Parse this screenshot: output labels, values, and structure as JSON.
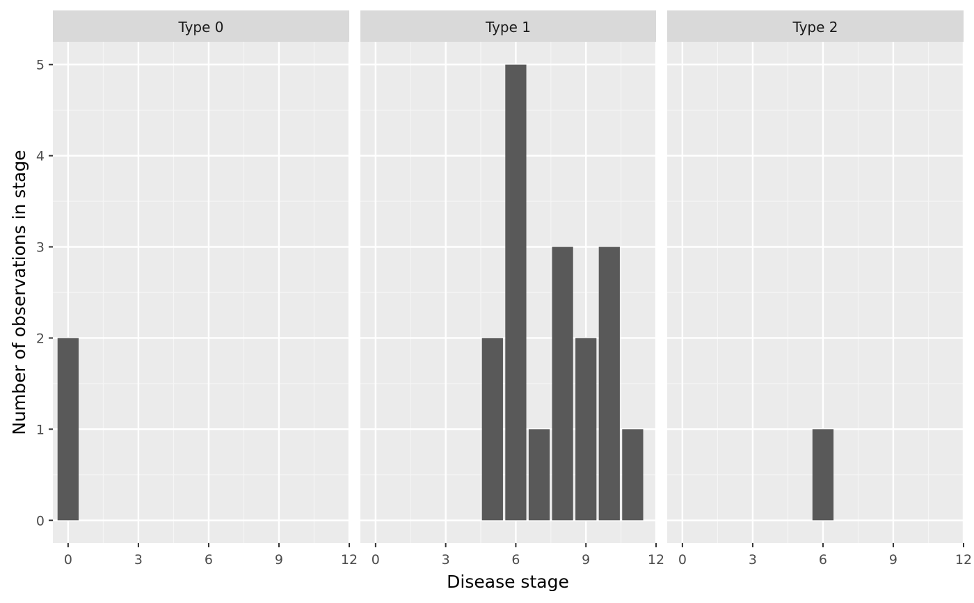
{
  "chart_data": {
    "type": "bar",
    "xlabel": "Disease stage",
    "ylabel": "Number of observations in stage",
    "xlim": [
      -0.65,
      12
    ],
    "ylim": [
      -0.25,
      5.25
    ],
    "x_ticks": [
      0,
      3,
      6,
      9,
      12
    ],
    "y_ticks": [
      0,
      1,
      2,
      3,
      4,
      5
    ],
    "grid": true,
    "facets": [
      {
        "label": "Type 0",
        "bars": [
          {
            "x": 0,
            "y": 2
          }
        ]
      },
      {
        "label": "Type 1",
        "bars": [
          {
            "x": 5,
            "y": 2
          },
          {
            "x": 6,
            "y": 5
          },
          {
            "x": 7,
            "y": 1
          },
          {
            "x": 8,
            "y": 3
          },
          {
            "x": 9,
            "y": 2
          },
          {
            "x": 10,
            "y": 3
          },
          {
            "x": 11,
            "y": 1
          }
        ]
      },
      {
        "label": "Type 2",
        "bars": [
          {
            "x": 6,
            "y": 1
          }
        ]
      }
    ],
    "colors": {
      "bar": "#595959",
      "panel_background": "#ebebeb",
      "strip_background": "#d9d9d9",
      "grid_major": "#ffffff",
      "grid_minor": "#f5f5f5"
    }
  }
}
